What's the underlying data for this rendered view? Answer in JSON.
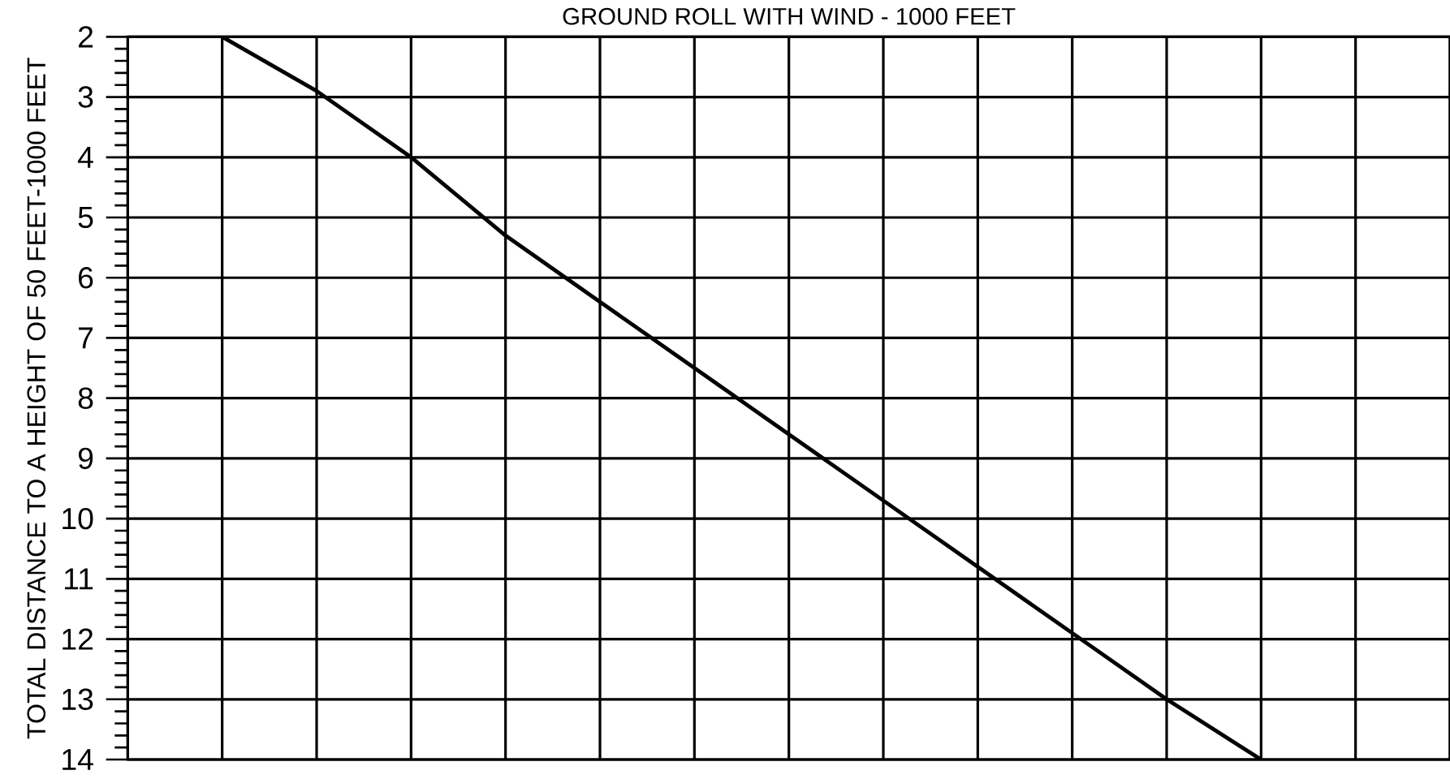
{
  "chart_data": {
    "type": "line",
    "title": "GROUND ROLL WITH WIND - 1000 FEET",
    "ylabel": "TOTAL DISTANCE TO A HEIGHT OF 50 FEET-1000 FEET",
    "categories": [
      null,
      null,
      null,
      null,
      null,
      null,
      null,
      null,
      null,
      null,
      null,
      null,
      null,
      null,
      null
    ],
    "series": [
      {
        "color": "#000000",
        "values": [
          null,
          2,
          2.9,
          4.0,
          5.3,
          6.4,
          7.5,
          8.6,
          9.7,
          10.8,
          11.9,
          13.0,
          14,
          null,
          null
        ]
      }
    ],
    "ylim": [
      14,
      2
    ],
    "yticks": [
      2,
      3,
      4,
      5,
      6,
      7,
      8,
      9,
      10,
      11,
      12,
      13,
      14
    ],
    "grid": true,
    "tick_labels": "y"
  }
}
